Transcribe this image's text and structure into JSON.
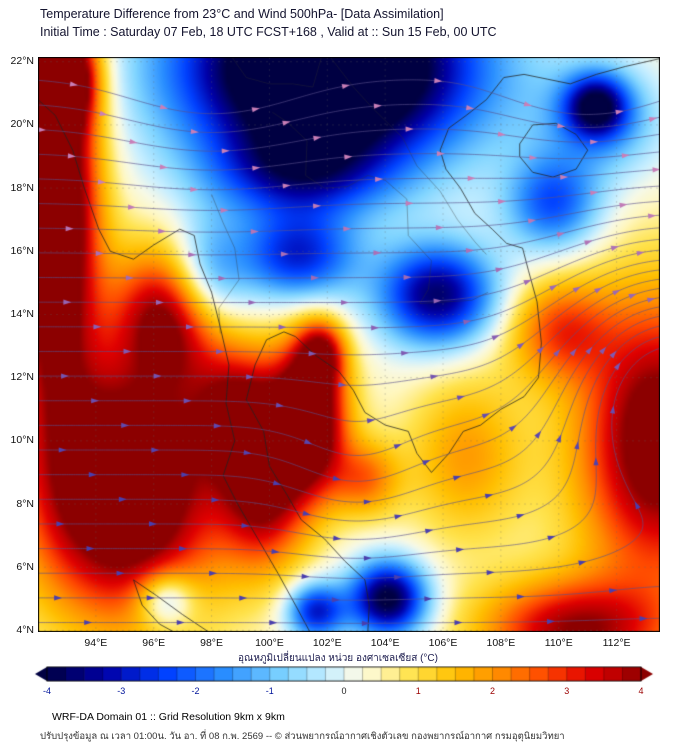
{
  "header": {
    "title": "Temperature Difference from 23°C and Wind 500hPa- [Data Assimilation]",
    "subtitle": "Initial Time : Saturday 07 Feb, 18 UTC FCST+168 , Valid at ::  Sun 15 Feb, 00 UTC"
  },
  "axes": {
    "lat": [
      {
        "value": 22,
        "label": "22°N"
      },
      {
        "value": 20,
        "label": "20°N"
      },
      {
        "value": 18,
        "label": "18°N"
      },
      {
        "value": 16,
        "label": "16°N"
      },
      {
        "value": 14,
        "label": "14°N"
      },
      {
        "value": 12,
        "label": "12°N"
      },
      {
        "value": 10,
        "label": "10°N"
      },
      {
        "value": 8,
        "label": "8°N"
      },
      {
        "value": 6,
        "label": "6°N"
      },
      {
        "value": 4,
        "label": "4°N"
      }
    ],
    "lon": [
      {
        "value": 94,
        "label": "94°E"
      },
      {
        "value": 96,
        "label": "96°E"
      },
      {
        "value": 98,
        "label": "98°E"
      },
      {
        "value": 100,
        "label": "100°E"
      },
      {
        "value": 102,
        "label": "102°E"
      },
      {
        "value": 104,
        "label": "104°E"
      },
      {
        "value": 106,
        "label": "106°E"
      },
      {
        "value": 108,
        "label": "108°E"
      },
      {
        "value": 110,
        "label": "110°E"
      },
      {
        "value": 112,
        "label": "112°E"
      }
    ]
  },
  "colorbar": {
    "title_th": "อุณหภูมิเปลี่ยนแปลง หน่วย องศาเซลเซียส (°C)",
    "min": -4,
    "max": 4,
    "segment_step": 0.25,
    "ticks": [
      "-4",
      "-3",
      "-2",
      "-1",
      "0",
      "1",
      "2",
      "3",
      "4"
    ],
    "color_stops": [
      [
        -4.0,
        "#000042"
      ],
      [
        -3.2,
        "#0000a8"
      ],
      [
        -2.4,
        "#0040ff"
      ],
      [
        -1.6,
        "#2a8fff"
      ],
      [
        -0.8,
        "#7fd4ff"
      ],
      [
        -0.2,
        "#c9efff"
      ],
      [
        0.15,
        "#f6f9e8"
      ],
      [
        0.45,
        "#fff7c0"
      ],
      [
        0.9,
        "#ffe34d"
      ],
      [
        1.5,
        "#ffbf00"
      ],
      [
        2.1,
        "#ff8c00"
      ],
      [
        2.7,
        "#ff4800"
      ],
      [
        3.3,
        "#e00000"
      ],
      [
        3.7,
        "#b80000"
      ],
      [
        4.0,
        "#8c0000"
      ]
    ]
  },
  "footer": {
    "line1": "WRF-DA Domain 01 :: Grid Resolution 9km x 9km",
    "line2": "ปรับปรุงข้อมูล ณ เวลา 01:00น. วัน อา. ที่ 08 ก.พ. 2569 -- © ส่วนพยากรณ์อากาศเชิงตัวเลข กองพยากรณ์อากาศ กรมอุตุนิยมวิทยา"
  },
  "chart_data": {
    "type": "heatmap",
    "field": "temperature difference from 23°C (°C), shaded",
    "overlay": "500 hPa wind streamlines with arrowheads",
    "extent": {
      "lon_min": 92.0,
      "lon_max": 113.5,
      "lat_min": 3.95,
      "lat_max": 22.15
    },
    "value_range": [
      -4,
      4
    ],
    "base": 0.3,
    "temp_blobs": [
      [
        95.0,
        8.5,
        3.2,
        4.0,
        5.5
      ],
      [
        99.8,
        8.5,
        1.5,
        2.5,
        3.5
      ],
      [
        99.0,
        11.0,
        1.6,
        2.0,
        3.0
      ],
      [
        96.5,
        14.0,
        1.8,
        2.2,
        3.6
      ],
      [
        92.5,
        17.5,
        1.5,
        6.0,
        6.0
      ],
      [
        92.8,
        21.5,
        1.1,
        1.5,
        4.5
      ],
      [
        101.4,
        10.8,
        1.25,
        2.4,
        5.0
      ],
      [
        101.8,
        12.8,
        0.8,
        1.0,
        2.5
      ],
      [
        103.3,
        8.8,
        1.2,
        1.2,
        2.0
      ],
      [
        113.5,
        10.0,
        2.8,
        4.5,
        4.5
      ],
      [
        110.0,
        13.5,
        1.8,
        1.6,
        2.2
      ],
      [
        110.5,
        4.0,
        3.2,
        1.6,
        3.5
      ],
      [
        106.8,
        9.5,
        2.0,
        2.6,
        1.6
      ],
      [
        96.4,
        5.0,
        1.0,
        0.9,
        -2.2
      ],
      [
        102.0,
        21.8,
        5.0,
        3.0,
        -7.0
      ],
      [
        101.0,
        18.5,
        3.0,
        1.5,
        -2.5
      ],
      [
        105.8,
        14.6,
        2.0,
        1.6,
        -4.0
      ],
      [
        101.0,
        15.8,
        2.0,
        1.4,
        -3.0
      ],
      [
        97.8,
        15.2,
        1.4,
        1.8,
        -2.2
      ],
      [
        109.8,
        17.5,
        1.6,
        1.5,
        -2.5
      ],
      [
        111.3,
        20.6,
        1.1,
        1.0,
        -3.5
      ],
      [
        111.5,
        20.0,
        2.2,
        1.8,
        -1.5
      ],
      [
        104.1,
        5.0,
        1.35,
        1.2,
        -4.5
      ],
      [
        101.6,
        4.6,
        1.0,
        0.9,
        -3.2
      ]
    ],
    "wind": {
      "u0": 1.0,
      "vortices": [
        [
          114.0,
          12.0,
          -4.0,
          3.8
        ],
        [
          111.0,
          23.5,
          3.0,
          2.8
        ],
        [
          98.0,
          22.0,
          0.8,
          3.5
        ],
        [
          103.0,
          9.0,
          0.8,
          2.5
        ]
      ],
      "arrow_color_south": "#4a3fae",
      "arrow_color_north": "#c97fb8",
      "line_color": "rgba(90,80,140,0.8)"
    },
    "coastlines": [
      [
        [
          92.0,
          20.8
        ],
        [
          92.6,
          20.3
        ],
        [
          93.2,
          19.2
        ],
        [
          93.6,
          18.0
        ],
        [
          94.1,
          16.7
        ],
        [
          94.5,
          16.0
        ],
        [
          95.3,
          15.75
        ],
        [
          96.0,
          16.2
        ],
        [
          96.9,
          16.7
        ],
        [
          97.4,
          16.5
        ],
        [
          97.6,
          15.6
        ],
        [
          98.0,
          14.7
        ],
        [
          98.3,
          13.6
        ],
        [
          98.6,
          12.4
        ],
        [
          98.5,
          11.2
        ],
        [
          98.8,
          10.0
        ],
        [
          98.4,
          8.9
        ],
        [
          98.9,
          8.0
        ],
        [
          99.6,
          6.9
        ],
        [
          100.3,
          5.8
        ],
        [
          100.9,
          4.8
        ],
        [
          101.4,
          3.95
        ]
      ],
      [
        [
          103.4,
          3.95
        ],
        [
          103.45,
          4.8
        ],
        [
          103.3,
          5.6
        ],
        [
          102.6,
          6.2
        ],
        [
          101.9,
          6.9
        ],
        [
          101.1,
          7.5
        ],
        [
          100.6,
          8.3
        ],
        [
          100.0,
          9.2
        ],
        [
          99.8,
          10.3
        ],
        [
          99.2,
          11.3
        ],
        [
          99.5,
          12.4
        ],
        [
          99.9,
          13.2
        ],
        [
          100.5,
          13.45
        ],
        [
          100.9,
          13.3
        ],
        [
          101.6,
          12.7
        ],
        [
          102.4,
          12.2
        ],
        [
          102.9,
          11.6
        ],
        [
          103.3,
          10.9
        ],
        [
          104.0,
          10.5
        ],
        [
          104.8,
          10.3
        ],
        [
          105.1,
          9.6
        ],
        [
          105.6,
          9.0
        ],
        [
          106.2,
          9.6
        ],
        [
          106.7,
          10.3
        ],
        [
          107.3,
          10.5
        ],
        [
          108.0,
          11.0
        ],
        [
          108.8,
          11.4
        ],
        [
          109.3,
          12.0
        ],
        [
          109.4,
          13.1
        ],
        [
          109.25,
          14.4
        ],
        [
          108.95,
          15.4
        ],
        [
          108.75,
          16.1
        ],
        [
          108.2,
          16.25
        ],
        [
          107.7,
          16.7
        ],
        [
          107.1,
          17.2
        ],
        [
          106.6,
          18.0
        ],
        [
          106.1,
          18.6
        ],
        [
          105.9,
          19.2
        ],
        [
          106.2,
          19.9
        ],
        [
          106.8,
          20.3
        ],
        [
          107.5,
          20.8
        ],
        [
          108.1,
          21.5
        ],
        [
          108.8,
          21.6
        ],
        [
          109.6,
          21.45
        ],
        [
          110.4,
          21.3
        ],
        [
          111.3,
          21.6
        ],
        [
          112.3,
          21.85
        ],
        [
          113.5,
          22.1
        ]
      ],
      [
        [
          108.65,
          19.4
        ],
        [
          109.1,
          20.0
        ],
        [
          109.9,
          20.05
        ],
        [
          110.6,
          19.7
        ],
        [
          111.0,
          19.2
        ],
        [
          110.6,
          18.6
        ],
        [
          109.8,
          18.35
        ],
        [
          109.1,
          18.5
        ],
        [
          108.65,
          19.0
        ],
        [
          108.65,
          19.4
        ]
      ],
      [
        [
          95.3,
          5.6
        ],
        [
          96.1,
          5.1
        ],
        [
          97.0,
          4.5
        ],
        [
          97.9,
          3.95
        ]
      ],
      [
        [
          95.3,
          5.6
        ],
        [
          95.6,
          4.8
        ],
        [
          96.2,
          4.2
        ],
        [
          96.7,
          3.95
        ]
      ]
    ],
    "borders": [
      [
        [
          100.1,
          20.4
        ],
        [
          100.6,
          20.1
        ],
        [
          101.3,
          19.5
        ],
        [
          101.25,
          18.4
        ],
        [
          101.9,
          18.0
        ],
        [
          102.7,
          18.05
        ],
        [
          103.4,
          18.4
        ],
        [
          104.0,
          18.25
        ],
        [
          104.75,
          17.65
        ],
        [
          104.8,
          16.5
        ],
        [
          105.6,
          15.7
        ],
        [
          105.5,
          14.8
        ],
        [
          105.2,
          14.35
        ],
        [
          106.1,
          14.4
        ],
        [
          107.0,
          14.45
        ],
        [
          107.55,
          14.7
        ]
      ],
      [
        [
          102.1,
          22.15
        ],
        [
          102.9,
          21.2
        ],
        [
          103.6,
          20.5
        ],
        [
          104.6,
          19.6
        ],
        [
          105.1,
          18.7
        ],
        [
          105.9,
          17.9
        ],
        [
          106.5,
          17.0
        ],
        [
          107.1,
          16.3
        ],
        [
          107.5,
          15.9
        ]
      ],
      [
        [
          98.0,
          17.8
        ],
        [
          98.4,
          16.9
        ],
        [
          98.8,
          16.1
        ],
        [
          98.95,
          15.1
        ],
        [
          98.25,
          14.2
        ],
        [
          98.3,
          13.4
        ]
      ],
      [
        [
          98.7,
          22.15
        ],
        [
          99.2,
          21.5
        ],
        [
          100.0,
          21.3
        ],
        [
          100.8,
          21.3
        ],
        [
          101.5,
          21.2
        ],
        [
          101.8,
          22.15
        ]
      ]
    ]
  }
}
